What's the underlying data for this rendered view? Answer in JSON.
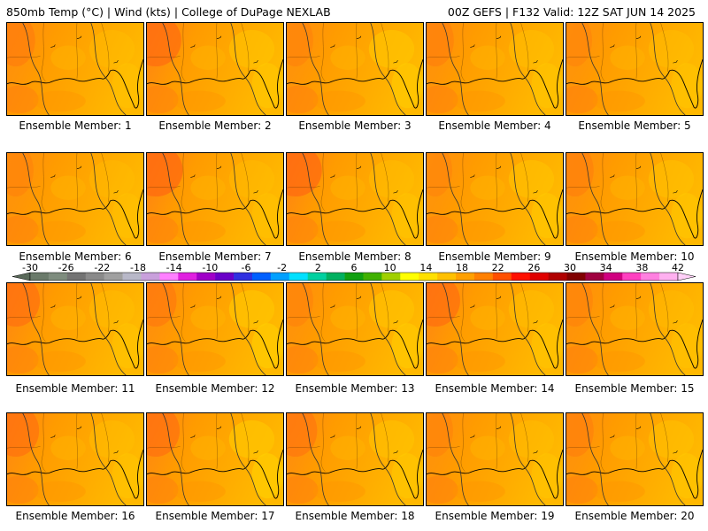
{
  "header": {
    "left": "850mb Temp (°C) | Wind (kts) | College of DuPage NEXLAB",
    "right": "00Z GEFS | F132 Valid: 12Z SAT JUN 14 2025"
  },
  "member_label_prefix": "Ensemble Member: ",
  "members": [
    {
      "id": "1",
      "hot_west": 0.45,
      "warm_east": 0.35
    },
    {
      "id": "2",
      "hot_west": 0.85,
      "warm_east": 0.55
    },
    {
      "id": "3",
      "hot_west": 0.35,
      "warm_east": 0.65
    },
    {
      "id": "4",
      "hot_west": 0.4,
      "warm_east": 0.45
    },
    {
      "id": "5",
      "hot_west": 0.3,
      "warm_east": 0.4
    },
    {
      "id": "6",
      "hot_west": 0.35,
      "warm_east": 0.3
    },
    {
      "id": "7",
      "hot_west": 0.95,
      "warm_east": 0.35
    },
    {
      "id": "8",
      "hot_west": 0.9,
      "warm_east": 0.4
    },
    {
      "id": "9",
      "hot_west": 0.3,
      "warm_east": 0.55
    },
    {
      "id": "10",
      "hot_west": 0.4,
      "warm_east": 0.5
    },
    {
      "id": "11",
      "hot_west": 0.75,
      "warm_east": 0.4
    },
    {
      "id": "12",
      "hot_west": 0.55,
      "warm_east": 0.7
    },
    {
      "id": "13",
      "hot_west": 0.35,
      "warm_east": 0.6
    },
    {
      "id": "14",
      "hot_west": 0.8,
      "warm_east": 0.45
    },
    {
      "id": "15",
      "hot_west": 0.35,
      "warm_east": 0.35
    },
    {
      "id": "16",
      "hot_west": 0.7,
      "warm_east": 0.4
    },
    {
      "id": "17",
      "hot_west": 0.75,
      "warm_east": 0.75
    },
    {
      "id": "18",
      "hot_west": 0.6,
      "warm_east": 0.55
    },
    {
      "id": "19",
      "hot_west": 0.35,
      "warm_east": 0.4
    },
    {
      "id": "20",
      "hot_west": 0.4,
      "warm_east": 0.5
    }
  ],
  "colorbar": {
    "ticks": [
      "-30",
      "-26",
      "-22",
      "-18",
      "-14",
      "-10",
      "-6",
      "-2",
      "2",
      "6",
      "10",
      "14",
      "18",
      "22",
      "26",
      "30",
      "34",
      "38",
      "42"
    ],
    "colors": [
      "#6a7a6a",
      "#7e8c7e",
      "#737373",
      "#8a8a8a",
      "#a0a0a0",
      "#b8b8c8",
      "#c9a0dc",
      "#ff80ff",
      "#e020e0",
      "#a000c8",
      "#6a00c8",
      "#3030e0",
      "#0060ff",
      "#00a0ff",
      "#00e0ff",
      "#00d0a0",
      "#00b060",
      "#10a010",
      "#40b000",
      "#a0d000",
      "#ffff00",
      "#ffe000",
      "#ffc000",
      "#ffa000",
      "#ff8000",
      "#ff5000",
      "#ff1000",
      "#e00000",
      "#b00000",
      "#800000",
      "#a00040",
      "#d00080",
      "#ff40c0",
      "#ff80e0",
      "#ffb0f0"
    ]
  }
}
